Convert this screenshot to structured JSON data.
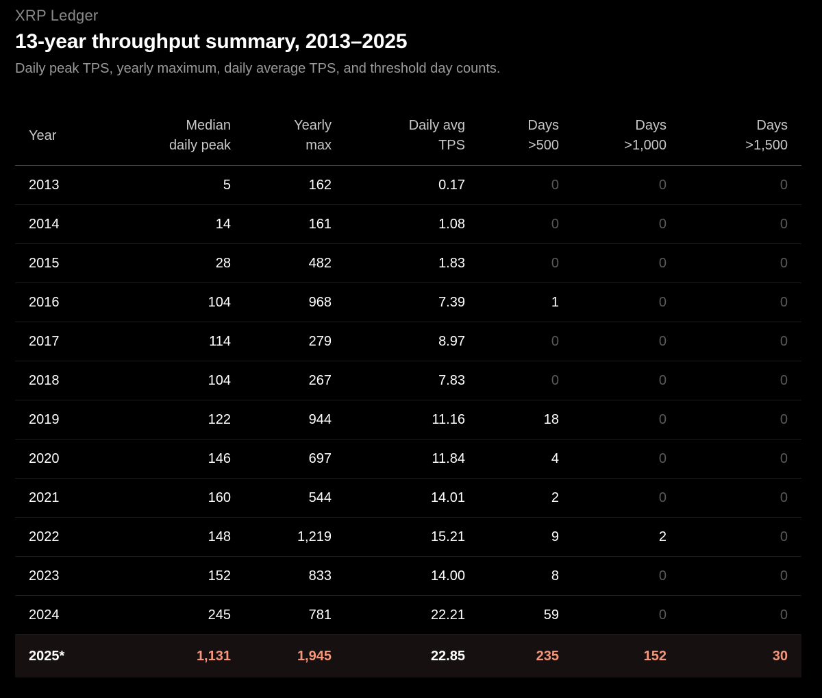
{
  "header": {
    "kicker": "XRP Ledger",
    "title": "13-year throughput summary, 2013–2025",
    "subtitle": "Daily peak TPS, yearly maximum, daily average TPS, and threshold day counts."
  },
  "colors": {
    "background": "#000000",
    "text": "#ffffff",
    "muted": "#5a5a5a",
    "accent": "#f4977c",
    "highlight_row_bg": "#161010"
  },
  "chart_data": {
    "type": "table",
    "title": "13-year throughput summary, 2013–2025",
    "columns": [
      {
        "key": "year",
        "lines": [
          "Year"
        ]
      },
      {
        "key": "median_daily_peak",
        "lines": [
          "Median",
          "daily peak"
        ]
      },
      {
        "key": "yearly_max",
        "lines": [
          "Yearly",
          "max"
        ]
      },
      {
        "key": "daily_avg_tps",
        "lines": [
          "Daily avg",
          "TPS"
        ]
      },
      {
        "key": "days_500",
        "lines": [
          "Days",
          ">500"
        ]
      },
      {
        "key": "days_1000",
        "lines": [
          "Days",
          ">1,000"
        ]
      },
      {
        "key": "days_1500",
        "lines": [
          "Days",
          ">1,500"
        ]
      }
    ],
    "rows": [
      [
        "2013",
        "5",
        "162",
        "0.17",
        "0",
        "0",
        "0"
      ],
      [
        "2014",
        "14",
        "161",
        "1.08",
        "0",
        "0",
        "0"
      ],
      [
        "2015",
        "28",
        "482",
        "1.83",
        "0",
        "0",
        "0"
      ],
      [
        "2016",
        "104",
        "968",
        "7.39",
        "1",
        "0",
        "0"
      ],
      [
        "2017",
        "114",
        "279",
        "8.97",
        "0",
        "0",
        "0"
      ],
      [
        "2018",
        "104",
        "267",
        "7.83",
        "0",
        "0",
        "0"
      ],
      [
        "2019",
        "122",
        "944",
        "11.16",
        "18",
        "0",
        "0"
      ],
      [
        "2020",
        "146",
        "697",
        "11.84",
        "4",
        "0",
        "0"
      ],
      [
        "2021",
        "160",
        "544",
        "14.01",
        "2",
        "0",
        "0"
      ],
      [
        "2022",
        "148",
        "1,219",
        "15.21",
        "9",
        "2",
        "0"
      ],
      [
        "2023",
        "152",
        "833",
        "14.00",
        "8",
        "0",
        "0"
      ],
      [
        "2024",
        "245",
        "781",
        "22.21",
        "59",
        "0",
        "0"
      ],
      [
        "2025*",
        "1,131",
        "1,945",
        "22.85",
        "235",
        "152",
        "30"
      ]
    ],
    "highlighted_row": "2025*"
  }
}
